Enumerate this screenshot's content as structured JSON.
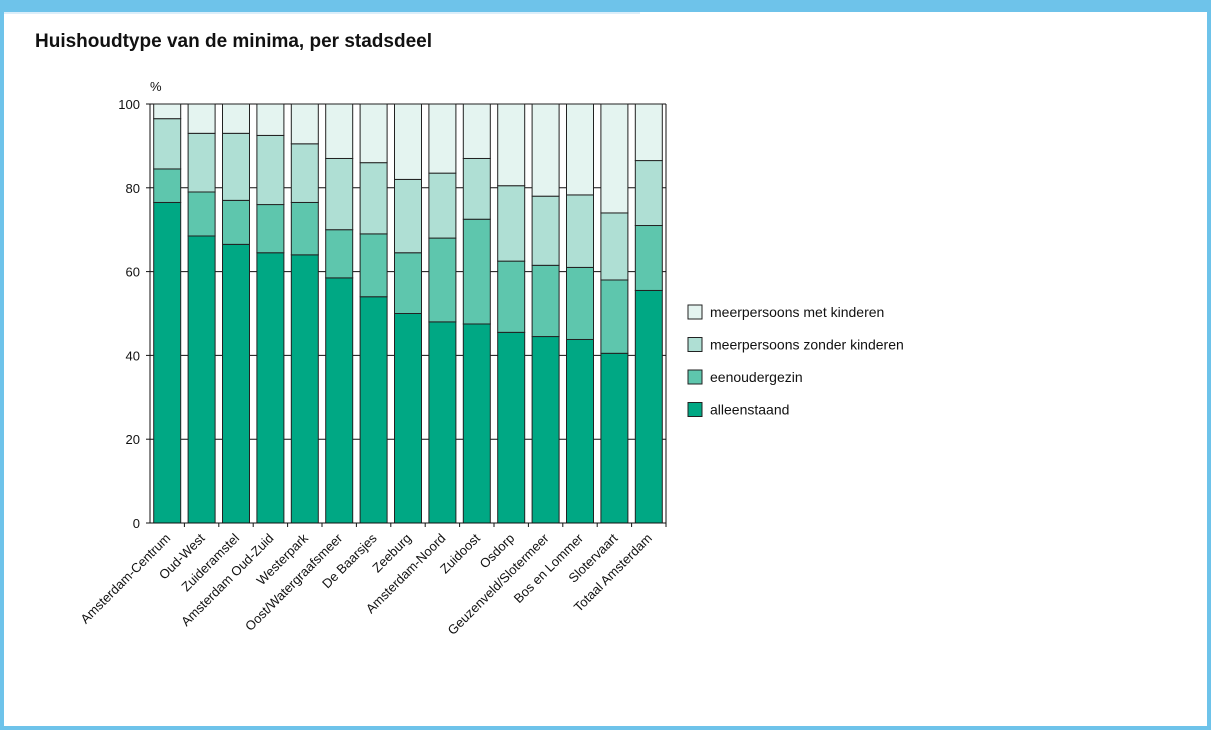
{
  "title": "Huishoudtype van de minima, per stadsdeel",
  "colors": {
    "frame": "#6ec3ea",
    "alleenstaand": "#00a884",
    "eenoudergezin": "#5ec6ad",
    "meerpersoons_zonder": "#afdfd4",
    "meerpersoons_met": "#e4f4f0"
  },
  "chart_data": {
    "type": "bar",
    "stacked": true,
    "y_unit_label": "%",
    "ylim": [
      0,
      100
    ],
    "yticks": [
      0,
      20,
      40,
      60,
      80,
      100
    ],
    "grid": true,
    "legend_position": "right",
    "categories": [
      "Amsterdam-Centrum",
      "Oud-West",
      "Zuideramstel",
      "Amsterdam Oud-Zuid",
      "Westerpark",
      "Oost/Watergraafsmeer",
      "De Baarsjes",
      "Zeeburg",
      "Amsterdam-Noord",
      "Zuidoost",
      "Osdorp",
      "Geuzenveld/Slotermeer",
      "Bos en Lommer",
      "Slotervaart",
      "Totaal Amsterdam"
    ],
    "series": [
      {
        "name": "alleenstaand",
        "color": "#00a884",
        "values": [
          76.5,
          68.5,
          66.5,
          64.5,
          64,
          58.5,
          54,
          50,
          48,
          47.5,
          45.5,
          44.5,
          43.8,
          40.5,
          55.5
        ]
      },
      {
        "name": "eenoudergezin",
        "color": "#5ec6ad",
        "values": [
          8,
          10.5,
          10.5,
          11.5,
          12.5,
          11.5,
          15,
          14.5,
          20,
          25,
          17,
          17,
          17.2,
          17.5,
          15.5
        ]
      },
      {
        "name": "meerpersoons zonder kinderen",
        "color": "#afdfd4",
        "values": [
          12,
          14,
          16,
          16.5,
          14,
          17,
          17,
          17.5,
          15.5,
          14.5,
          18,
          16.5,
          17.3,
          16,
          15.5
        ]
      },
      {
        "name": "meerpersoons met kinderen",
        "color": "#e4f4f0",
        "values": [
          3.5,
          7,
          7,
          7.5,
          9.5,
          13,
          14,
          18,
          16.5,
          13,
          19.5,
          22,
          21.7,
          26,
          13.5
        ]
      }
    ]
  }
}
